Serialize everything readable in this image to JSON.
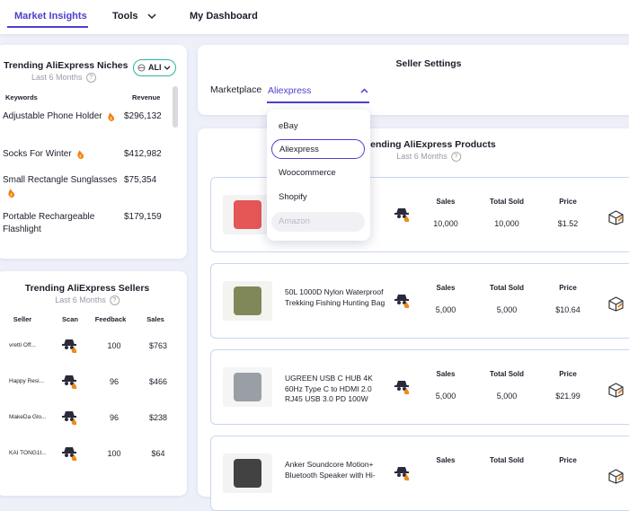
{
  "nav": {
    "tabs": [
      "Market Insights",
      "Tools",
      "My Dashboard"
    ]
  },
  "niches": {
    "title": "Trending AliExpress Niches",
    "subtitle": "Last 6 Months",
    "selector": "ALI",
    "headers": [
      "Keywords",
      "Revenue"
    ],
    "rows": [
      {
        "keyword": "Adjustable Phone Holder",
        "revenue": "$296,132",
        "hot": true
      },
      {
        "keyword": "Socks For Winter",
        "revenue": "$412,982",
        "hot": true
      },
      {
        "keyword": "Small Rectangle Sunglasses",
        "revenue": "$75,354",
        "hot": true
      },
      {
        "keyword": "Portable Rechargeable Flashlight",
        "revenue": "$179,159",
        "hot": false
      }
    ]
  },
  "sellers": {
    "title": "Trending AliExpress Sellers",
    "subtitle": "Last 6 Months",
    "headers": [
      "Seller",
      "Scan",
      "Feedback",
      "Sales"
    ],
    "rows": [
      {
        "seller": "vretti Off...",
        "feedback": "100",
        "sales": "$763"
      },
      {
        "seller": "Happy Resi...",
        "feedback": "96",
        "sales": "$466"
      },
      {
        "seller": "MakeDa Glo...",
        "feedback": "96",
        "sales": "$238"
      },
      {
        "seller": "KAI TONG1I...",
        "feedback": "100",
        "sales": "$64"
      }
    ]
  },
  "settings": {
    "title": "Seller Settings",
    "label": "Marketplace",
    "selected": "Aliexpress",
    "options": [
      "eBay",
      "Aliexpress",
      "Woocommerce",
      "Shopify",
      "Amazon"
    ]
  },
  "products": {
    "title": "Trending AliExpress Products",
    "subtitle": "Last 6 Months",
    "headers": [
      "Sales",
      "Total Sold",
      "Price"
    ],
    "items": [
      {
        "sales": "10,000",
        "total_sold": "10,000",
        "price": "$1.52"
      },
      {
        "name": "50L 1000D Nylon Waterproof Trekking Fishing Hunting Bag",
        "sales": "5,000",
        "total_sold": "5,000",
        "price": "$10.64"
      },
      {
        "name": "UGREEN USB C HUB 4K 60Hz Type C to HDMI 2.0 RJ45 USB 3.0 PD 100W",
        "sales": "5,000",
        "total_sold": "5,000",
        "price": "$21.99"
      },
      {
        "name": "Anker Soundcore Motion+ Bluetooth Speaker with Hi-"
      }
    ]
  }
}
